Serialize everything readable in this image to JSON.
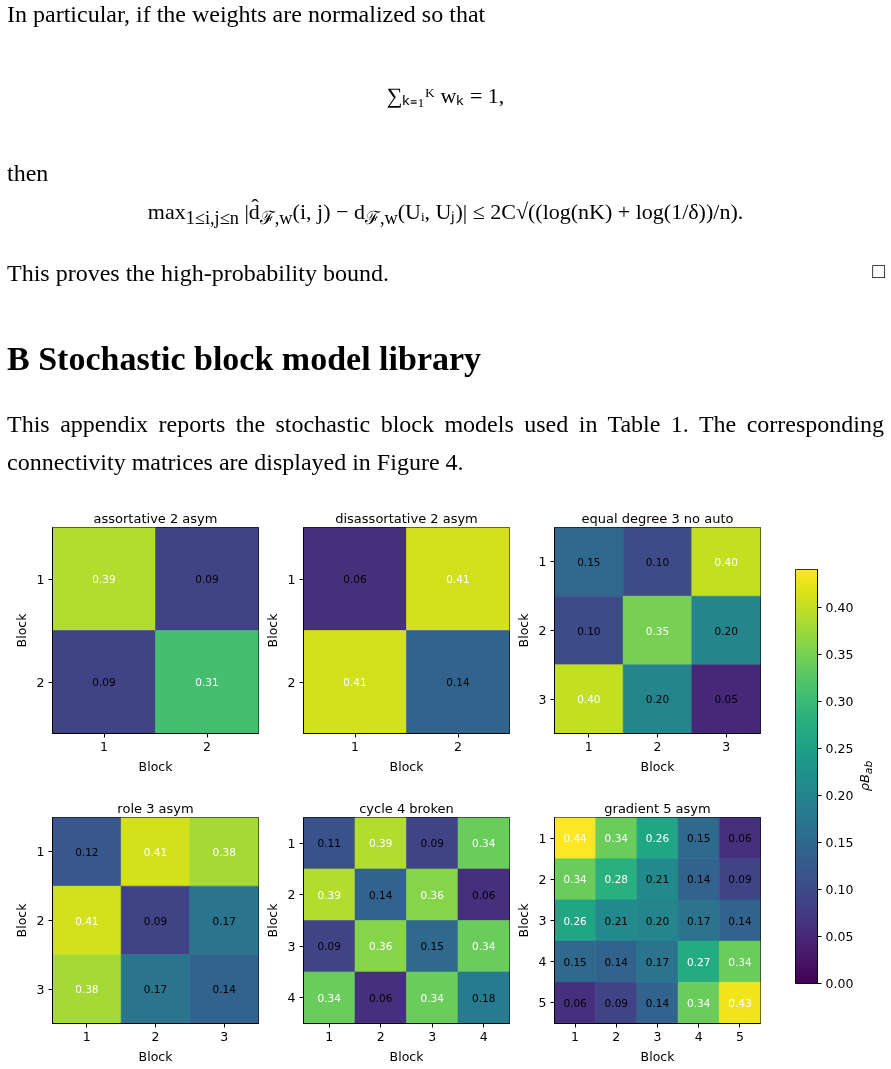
{
  "chart_data": [
    {
      "type": "heatmap",
      "title": "assortative 2 asym",
      "xlabel": "Block",
      "ylabel": "Block",
      "categories": [
        "1",
        "2"
      ],
      "y_categories": [
        "1",
        "2"
      ],
      "cells": [
        [
          0.39,
          0.09
        ],
        [
          0.09,
          0.31
        ]
      ],
      "data_labels": true,
      "annotations": [
        "In particular, if the weights are normalized so that",
        "∑ₖ₌₁ᴷ wₖ = 1,",
        "then",
        "max$_{1≤i,j≤n}$ |d̂$_{ℱ,w}$(i, j) − d$_{ℱ,w}$(Uᵢ, Uⱼ)| ≤ 2C√((log(nK) + log(1/δ))/n).",
        "This proves the high-probability bound.",
        "□",
        "B Stochastic block model library",
        "This appendix reports the stochastic block models used in Table 1. The corresponding connectivity matrices are displayed in Figure 4."
      ]
    },
    {
      "type": "heatmap",
      "title": "disassortative 2 asym",
      "xlabel": "Block",
      "ylabel": "Block",
      "categories": [
        "1",
        "2"
      ],
      "y_categories": [
        "1",
        "2"
      ],
      "cells": [
        [
          0.06,
          0.41
        ],
        [
          0.41,
          0.14
        ]
      ],
      "data_labels": true
    },
    {
      "type": "heatmap",
      "title": "equal degree 3 no auto",
      "xlabel": "Block",
      "ylabel": "Block",
      "categories": [
        "1",
        "2",
        "3"
      ],
      "y_categories": [
        "1",
        "2",
        "3"
      ],
      "cells": [
        [
          0.15,
          0.1,
          0.4
        ],
        [
          0.1,
          0.35,
          0.2
        ],
        [
          0.4,
          0.2,
          0.05
        ]
      ],
      "cell_labels": [
        [
          "0.15",
          "0.10",
          "0.40"
        ],
        [
          "0.10",
          "0.35",
          "0.20"
        ],
        [
          "0.40",
          "0.20",
          "0.05"
        ]
      ],
      "data_labels": true
    },
    {
      "type": "heatmap",
      "title": "role 3 asym",
      "xlabel": "Block",
      "ylabel": "Block",
      "categories": [
        "1",
        "2",
        "3"
      ],
      "y_categories": [
        "1",
        "2",
        "3"
      ],
      "cells": [
        [
          0.12,
          0.41,
          0.38
        ],
        [
          0.41,
          0.09,
          0.17
        ],
        [
          0.38,
          0.17,
          0.14
        ]
      ],
      "data_labels": true
    },
    {
      "type": "heatmap",
      "title": "cycle 4 broken",
      "xlabel": "Block",
      "ylabel": "Block",
      "categories": [
        "1",
        "2",
        "3",
        "4"
      ],
      "y_categories": [
        "1",
        "2",
        "3",
        "4"
      ],
      "cells": [
        [
          0.11,
          0.39,
          0.09,
          0.34
        ],
        [
          0.39,
          0.14,
          0.36,
          0.06
        ],
        [
          0.09,
          0.36,
          0.15,
          0.34
        ],
        [
          0.34,
          0.06,
          0.34,
          0.18
        ]
      ],
      "data_labels": true
    },
    {
      "type": "heatmap",
      "title": "gradient 5 asym",
      "xlabel": "Block",
      "ylabel": "Block",
      "categories": [
        "1",
        "2",
        "3",
        "4",
        "5"
      ],
      "y_categories": [
        "1",
        "2",
        "3",
        "4",
        "5"
      ],
      "cells": [
        [
          0.44,
          0.34,
          0.26,
          0.15,
          0.06
        ],
        [
          0.34,
          0.28,
          0.21,
          0.14,
          0.09
        ],
        [
          0.26,
          0.21,
          0.2,
          0.17,
          0.14
        ],
        [
          0.15,
          0.14,
          0.17,
          0.27,
          0.34
        ],
        [
          0.06,
          0.09,
          0.14,
          0.34,
          0.43
        ]
      ],
      "cell_labels": [
        [
          "0.44",
          "0.34",
          "0.26",
          "0.15",
          "0.06"
        ],
        [
          "0.34",
          "0.28",
          "0.21",
          "0.14",
          "0.09"
        ],
        [
          "0.26",
          "0.21",
          "0.20",
          "0.17",
          "0.14"
        ],
        [
          "0.15",
          "0.14",
          "0.17",
          "0.27",
          "0.34"
        ],
        [
          "0.06",
          "0.09",
          "0.14",
          "0.34",
          "0.43"
        ]
      ],
      "clim": [
        0,
        0.44
      ],
      "data_labels": true,
      "clabel": "ρB$_{ab}$",
      "cticks": [
        {
          "value": 0,
          "label": "0.00"
        },
        {
          "value": 0.05,
          "label": "0.05"
        },
        {
          "value": 0.1,
          "label": "0.10"
        },
        {
          "value": 0.15,
          "label": "0.15"
        },
        {
          "value": 0.2,
          "label": "0.20"
        },
        {
          "value": 0.25,
          "label": "0.25"
        },
        {
          "value": 0.3,
          "label": "0.30"
        },
        {
          "value": 0.35,
          "label": "0.35"
        },
        {
          "value": 0.4,
          "label": "0.40"
        }
      ]
    }
  ]
}
